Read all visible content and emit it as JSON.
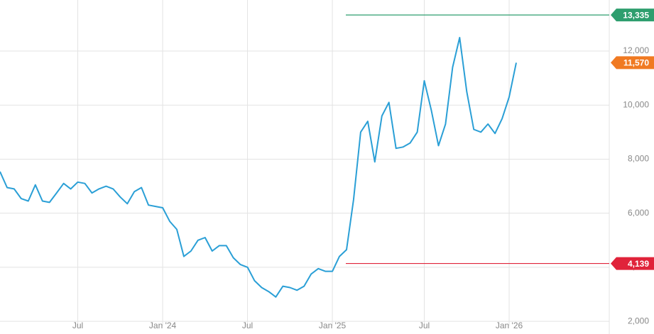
{
  "chart_data": {
    "type": "line",
    "categories": [
      null,
      null,
      null,
      null,
      null,
      null,
      null,
      null,
      null,
      null,
      null,
      "Jul",
      null,
      null,
      null,
      null,
      null,
      null,
      null,
      null,
      null,
      null,
      null,
      "Jan '24",
      null,
      null,
      null,
      null,
      null,
      null,
      null,
      null,
      null,
      null,
      null,
      "Jul",
      null,
      null,
      null,
      null,
      null,
      null,
      null,
      null,
      null,
      null,
      null,
      "Jan '25",
      null,
      null,
      null,
      null,
      null,
      null,
      null,
      null,
      null,
      null,
      null,
      null,
      "Jul",
      null,
      null,
      null,
      null,
      null,
      null,
      null,
      null,
      null,
      null,
      null,
      "Jan '26",
      null
    ],
    "series": [
      {
        "color": "#2a9fd6",
        "values": [
          7540,
          6950,
          6900,
          6540,
          6450,
          7050,
          6450,
          6400,
          6750,
          7100,
          6900,
          7150,
          7100,
          6750,
          6900,
          7000,
          6900,
          6600,
          6350,
          6800,
          6950,
          6300,
          6250,
          6200,
          5700,
          5400,
          4400,
          4600,
          5000,
          5100,
          4600,
          4800,
          4800,
          4350,
          4100,
          4000,
          3500,
          3250,
          3100,
          2900,
          3300,
          3250,
          3150,
          3300,
          3750,
          3950,
          3850,
          3850,
          4400,
          4650,
          6500,
          9000,
          9400,
          7900,
          9600,
          10100,
          8400,
          8450,
          8600,
          9000,
          10900,
          9800,
          8500,
          9300,
          11400,
          12500,
          10500,
          9100,
          9000,
          9300,
          8950,
          9500,
          10300,
          11570
        ]
      }
    ],
    "ylim": [
      1530,
      13890
    ],
    "yticks": [
      {
        "value": 2000,
        "label": "2,000"
      },
      {
        "value": 4000,
        "label": "4,000"
      },
      {
        "value": 6000,
        "label": "6,000"
      },
      {
        "value": 8000,
        "label": "8,000"
      },
      {
        "value": 10000,
        "label": "10,000"
      },
      {
        "value": 12000,
        "label": "12,000"
      }
    ],
    "grid": true,
    "reference_lines": [
      {
        "value": 13335,
        "label": "13,335",
        "color": "#2e9e6e"
      },
      {
        "value": 4139,
        "label": "4,139",
        "color": "#e0233a"
      }
    ],
    "last_value": {
      "label": "11,570",
      "color": "#f07a22"
    }
  }
}
